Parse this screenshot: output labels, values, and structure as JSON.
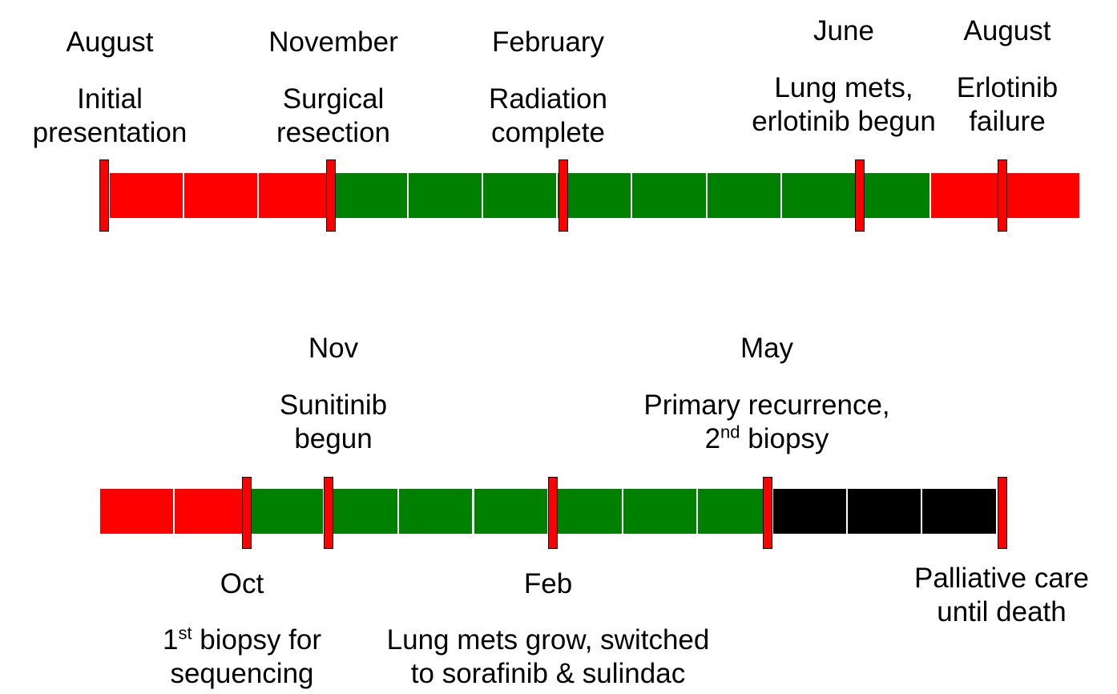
{
  "colors": {
    "red": "#ff0000",
    "green": "#008000",
    "black": "#000000",
    "divider": "#ffffff"
  },
  "timeline1": {
    "segments": [
      "red",
      "red",
      "red",
      "green",
      "green",
      "green",
      "green",
      "green",
      "green",
      "green",
      "green",
      "red",
      "red"
    ],
    "events": [
      {
        "month": "August",
        "desc_lines": [
          "Initial",
          "presentation"
        ]
      },
      {
        "month": "November",
        "desc_lines": [
          "Surgical",
          "resection"
        ]
      },
      {
        "month": "February",
        "desc_lines": [
          "Radiation",
          "complete"
        ]
      },
      {
        "month": "June",
        "desc_lines": [
          "Lung mets,",
          "erlotinib begun"
        ]
      },
      {
        "month": "August",
        "desc_lines": [
          "Erlotinib",
          "failure"
        ]
      }
    ]
  },
  "timeline2": {
    "segments": [
      "red",
      "red",
      "green",
      "green",
      "green",
      "green",
      "green",
      "green",
      "green",
      "black",
      "black",
      "black"
    ],
    "above": [
      {
        "month": "Nov",
        "desc_lines": [
          "Sunitinib",
          "begun"
        ]
      },
      {
        "month": "May",
        "line1": "Primary recurrence,",
        "line2_pre": "2",
        "line2_sup": "nd",
        "line2_post": " biopsy"
      }
    ],
    "below": [
      {
        "month": "Oct",
        "line1_pre": "1",
        "line1_sup": "st",
        "line1_post": " biopsy for",
        "line2": "sequencing"
      },
      {
        "month": "Feb",
        "desc_lines": [
          "Lung mets grow, switched",
          "to sorafinib & sulindac"
        ]
      },
      {
        "desc_lines": [
          "Palliative care",
          "until death"
        ]
      }
    ]
  }
}
